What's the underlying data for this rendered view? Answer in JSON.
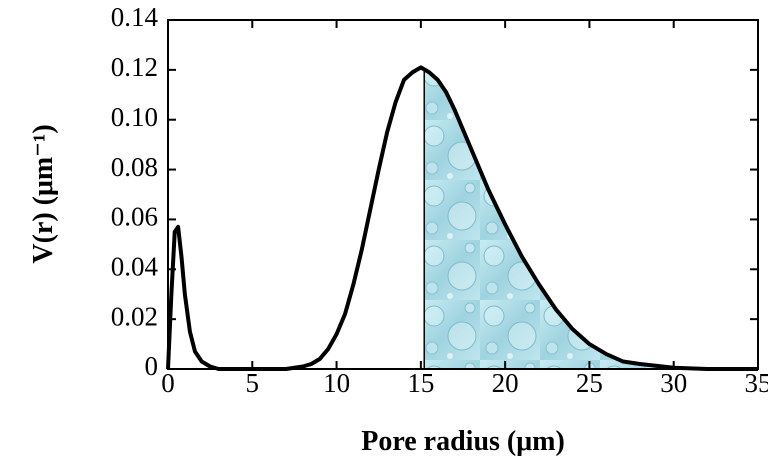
{
  "chart_data": {
    "type": "line",
    "x_label": "Pore radius (μm)",
    "y_label": "V(r) (μm⁻¹)",
    "x": [
      0,
      0.2,
      0.4,
      0.6,
      0.8,
      1.0,
      1.3,
      1.6,
      2.0,
      2.5,
      3,
      4,
      5,
      6,
      7,
      8,
      8.5,
      9,
      9.5,
      10,
      10.5,
      11,
      11.5,
      12,
      12.5,
      13,
      13.5,
      14,
      14.5,
      15,
      15.5,
      16,
      16.5,
      17,
      17.5,
      18,
      18.5,
      19,
      19.5,
      20,
      21,
      22,
      23,
      24,
      25,
      26,
      27,
      28,
      30,
      32,
      35
    ],
    "values": [
      0,
      0.03,
      0.055,
      0.057,
      0.045,
      0.03,
      0.015,
      0.007,
      0.003,
      0.001,
      0,
      0,
      0,
      0,
      0,
      0.001,
      0.002,
      0.004,
      0.008,
      0.014,
      0.022,
      0.034,
      0.048,
      0.064,
      0.08,
      0.095,
      0.107,
      0.116,
      0.119,
      0.121,
      0.119,
      0.116,
      0.111,
      0.104,
      0.096,
      0.088,
      0.08,
      0.072,
      0.065,
      0.058,
      0.045,
      0.034,
      0.024,
      0.016,
      0.01,
      0.006,
      0.003,
      0.002,
      0.0005,
      0,
      0
    ],
    "color": "#000000",
    "shade_from": 15.2,
    "shade_color": "#a8dbe6",
    "xlim": [
      0,
      35
    ],
    "xticks": [
      0,
      5,
      10,
      15,
      20,
      25,
      30,
      35
    ],
    "ylim": [
      0,
      0.14
    ],
    "yticks": [
      0,
      0.02,
      0.04,
      0.06,
      0.08,
      {
        "value": 0.1,
        "label": "0.10"
      },
      0.12,
      0.14
    ]
  }
}
